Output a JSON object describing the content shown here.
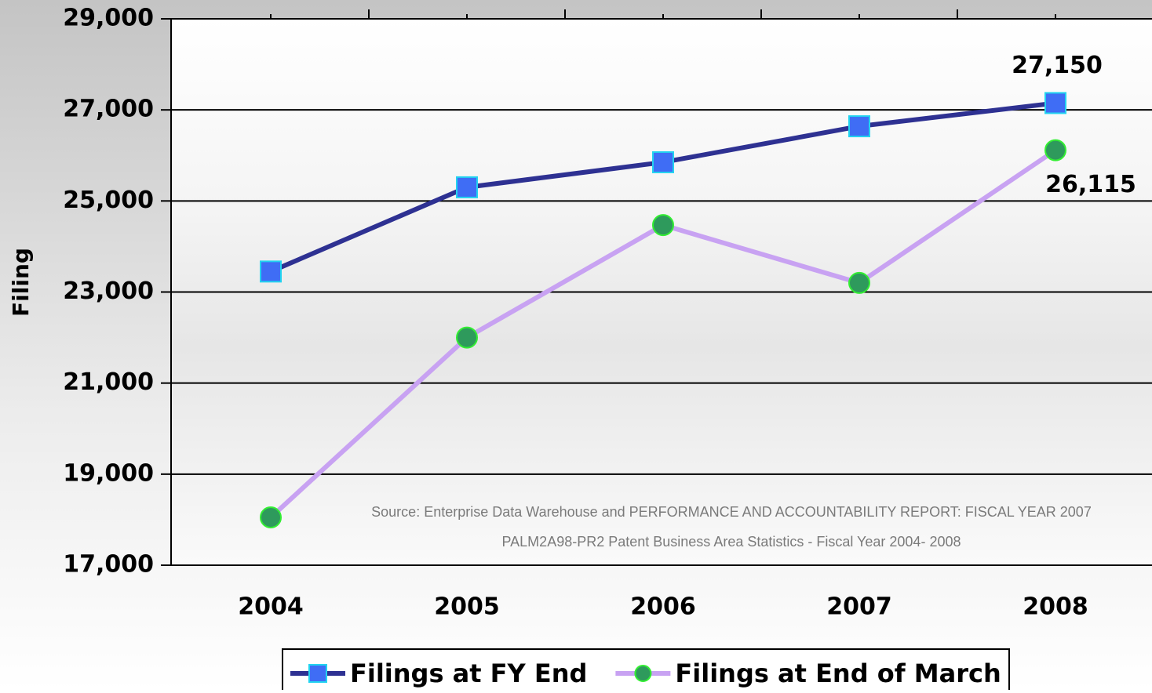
{
  "chart_data": {
    "type": "line",
    "y_label": "Filing",
    "categories": [
      "2004",
      "2005",
      "2006",
      "2007",
      "2008"
    ],
    "series": [
      {
        "name": "Filings at FY End",
        "color": "#2e3192",
        "marker_color": "#3f6df5",
        "marker": "square",
        "values": [
          23450,
          25300,
          25850,
          26640,
          27150
        ],
        "value_labels": [
          null,
          null,
          null,
          null,
          "27,150"
        ]
      },
      {
        "name": "Filings at End of March",
        "color": "#c8a2f2",
        "marker_color": "#2e9a5c",
        "marker": "circle",
        "values": [
          18050,
          22000,
          24470,
          23200,
          26115
        ],
        "value_labels": [
          null,
          null,
          null,
          null,
          "26,115"
        ]
      }
    ],
    "ylim": [
      17000,
      29000
    ],
    "yticks": [
      {
        "value": 17000,
        "label": "17,000"
      },
      {
        "value": 19000,
        "label": "19,000"
      },
      {
        "value": 21000,
        "label": "21,000"
      },
      {
        "value": 23000,
        "label": "23,000"
      },
      {
        "value": 25000,
        "label": "25,000"
      },
      {
        "value": 27000,
        "label": "27,000"
      },
      {
        "value": 29000,
        "label": "29,000"
      }
    ],
    "grid": true,
    "legend": "bottom",
    "annotations": [
      "Source: Enterprise Data Warehouse and PERFORMANCE AND ACCOUNTABILITY REPORT: FISCAL YEAR 2007",
      "PALM2A98-PR2  Patent  Business  Area  Statistics  - Fiscal Year    2004- 2008"
    ]
  }
}
